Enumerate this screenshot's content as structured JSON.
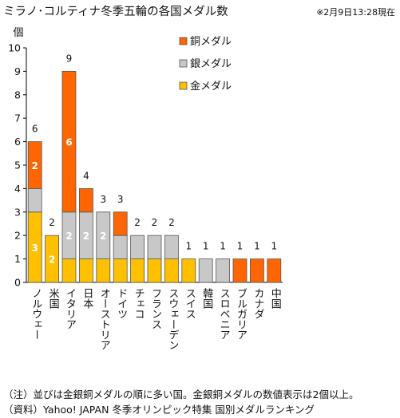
{
  "header": {
    "title": "ミラノ･コルティナ冬季五輪の各国メダル数",
    "timestamp": "※2月9日13:28現在"
  },
  "footer": {
    "note": "（注）並びは金銀銅メダルの順に多い国。金銀銅メダルの数値表示は2個以上。",
    "source": "（資料）Yahoo! JAPAN 冬季オリンピック特集 国別メダルランキング"
  },
  "colors": {
    "gold": "#FFC000",
    "silver": "#C8C8C8",
    "bronze": "#FF6600",
    "outline": "#555555"
  },
  "chart_data": {
    "type": "bar",
    "stacked": true,
    "ylabel": "個",
    "ylim": [
      0,
      10
    ],
    "yticks": [
      0,
      1,
      2,
      3,
      4,
      5,
      6,
      7,
      8,
      9,
      10
    ],
    "grid": false,
    "legend_position": "top-right",
    "categories": [
      "ノルウェー",
      "米国",
      "イタリア",
      "日本",
      "オーストリア",
      "ドイツ",
      "チェコ",
      "フランス",
      "スウェーデン",
      "スイス",
      "韓国",
      "スロベニア",
      "ブルガリア",
      "カナダ",
      "中国"
    ],
    "series": [
      {
        "name": "金メダル",
        "color": "#FFC000",
        "values": [
          3,
          2,
          1,
          1,
          1,
          1,
          1,
          1,
          1,
          1,
          0,
          0,
          0,
          0,
          0
        ]
      },
      {
        "name": "銀メダル",
        "color": "#C8C8C8",
        "values": [
          1,
          0,
          2,
          2,
          2,
          1,
          1,
          1,
          1,
          0,
          1,
          1,
          0,
          0,
          0
        ]
      },
      {
        "name": "銅メダル",
        "color": "#FF6600",
        "values": [
          2,
          0,
          6,
          1,
          0,
          1,
          0,
          0,
          0,
          0,
          0,
          0,
          1,
          1,
          1
        ]
      }
    ],
    "totals": [
      6,
      2,
      9,
      4,
      3,
      3,
      2,
      2,
      2,
      1,
      1,
      1,
      1,
      1,
      1
    ],
    "legend_order": [
      "銅メダル",
      "銀メダル",
      "金メダル"
    ]
  }
}
